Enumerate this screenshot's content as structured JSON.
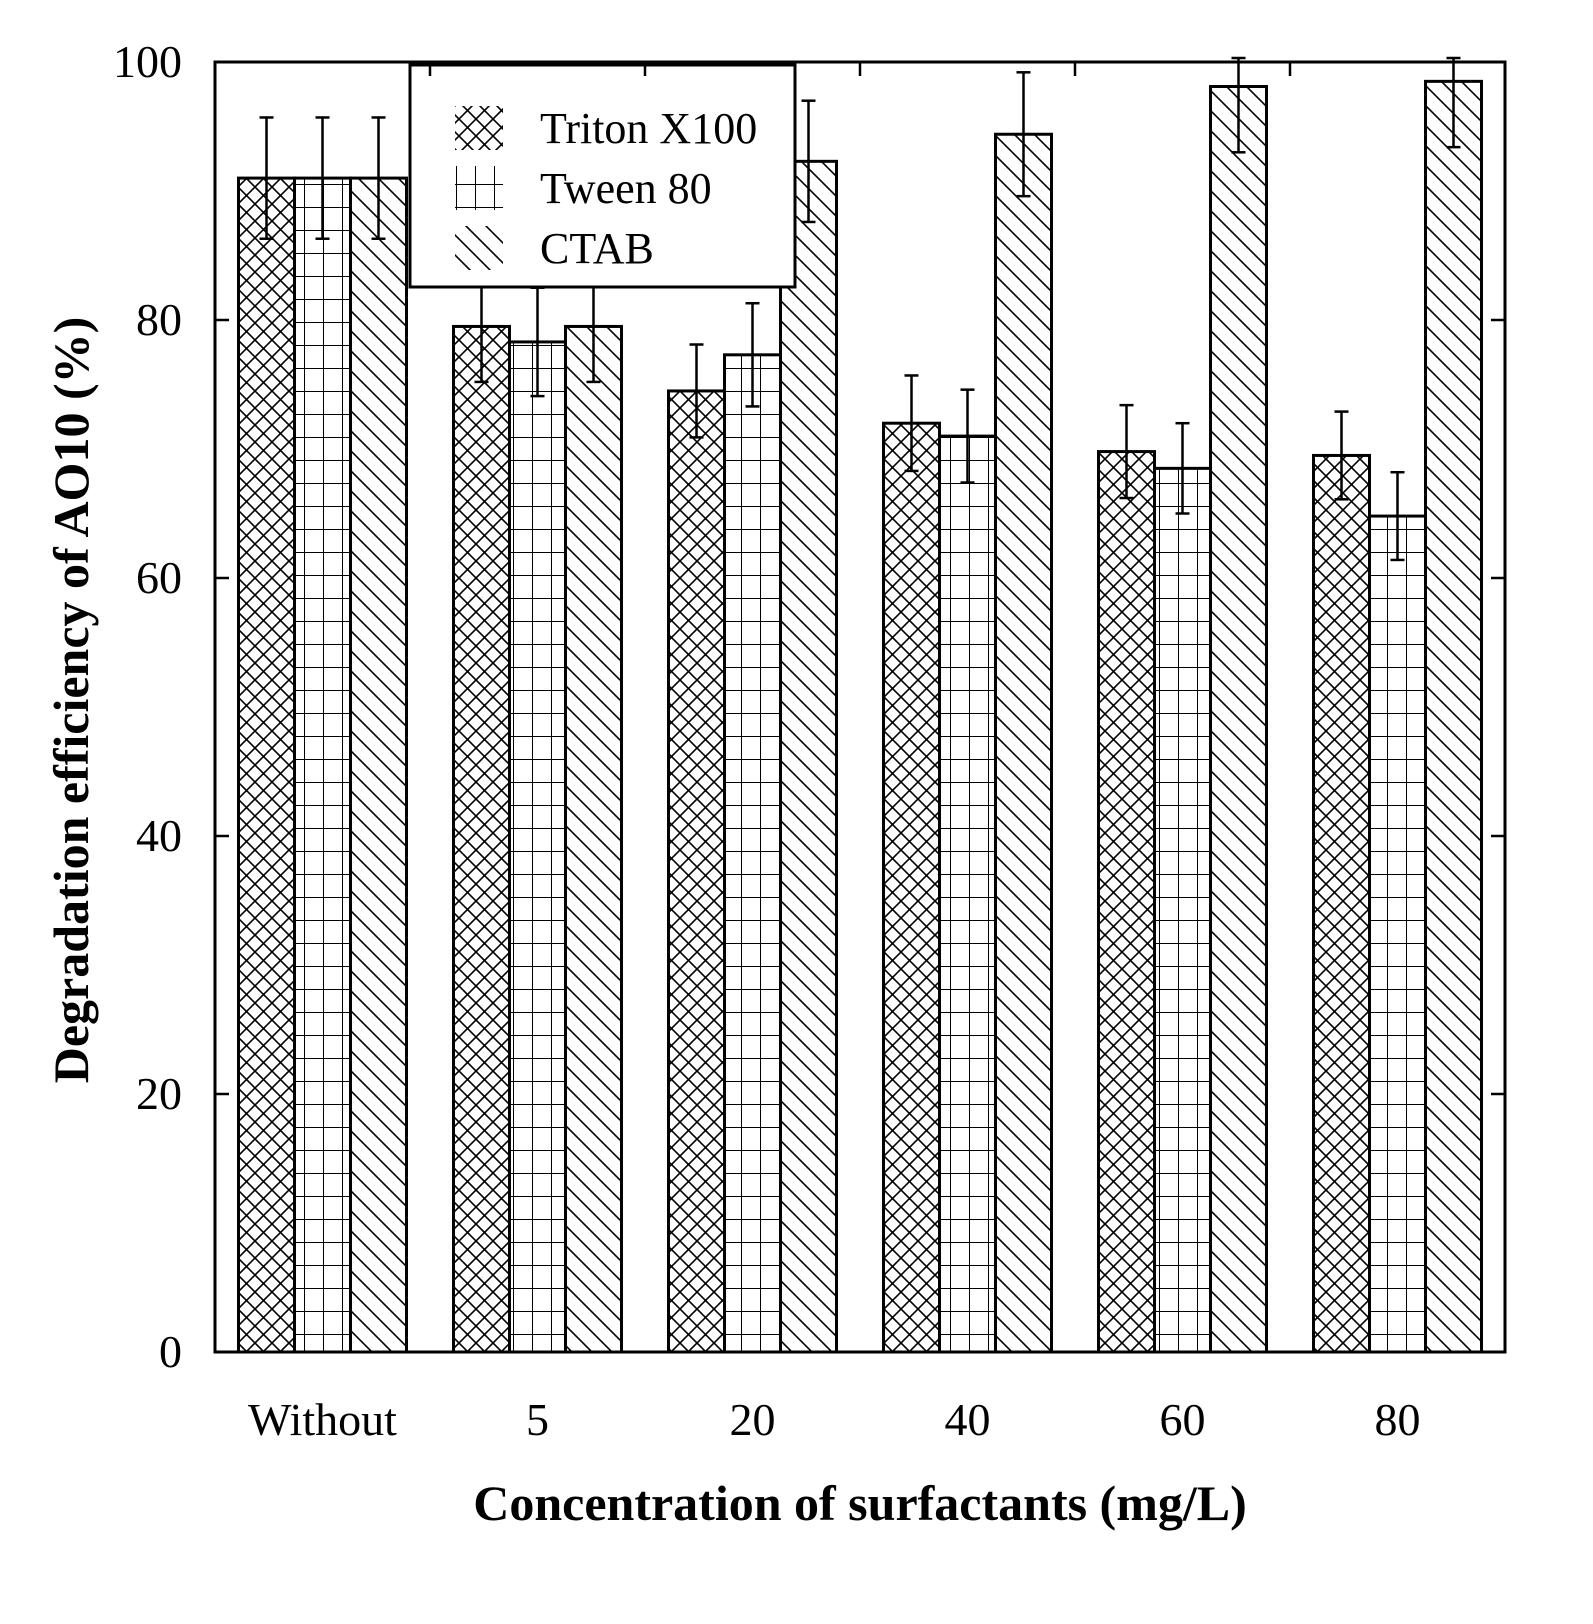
{
  "chart_data": {
    "type": "bar",
    "title": "",
    "xlabel": "Concentration of surfactants (mg/L)",
    "ylabel": "Degradation efficiency of AO10 (%)",
    "ylim": [
      0,
      100
    ],
    "yticks": [
      0,
      20,
      40,
      60,
      80,
      100
    ],
    "grid": false,
    "legend_position": "top-left",
    "categories": [
      "Without",
      "5",
      "20",
      "40",
      "60",
      "80"
    ],
    "series": [
      {
        "name": "Triton X100",
        "pattern": "crosshatch",
        "values": [
          91.0,
          79.5,
          74.5,
          72.0,
          69.8,
          69.5
        ],
        "errors": [
          4.7,
          4.3,
          3.6,
          3.7,
          3.6,
          3.4
        ]
      },
      {
        "name": "Tween 80",
        "pattern": "grid",
        "values": [
          91.0,
          78.3,
          77.3,
          71.0,
          68.5,
          64.8
        ],
        "errors": [
          4.7,
          4.2,
          4.0,
          3.6,
          3.5,
          3.4
        ]
      },
      {
        "name": "CTAB",
        "pattern": "diagonal",
        "values": [
          91.0,
          79.5,
          92.3,
          94.4,
          98.1,
          98.5
        ],
        "errors": [
          4.7,
          4.3,
          4.7,
          4.8,
          5.1,
          5.1
        ]
      }
    ]
  }
}
